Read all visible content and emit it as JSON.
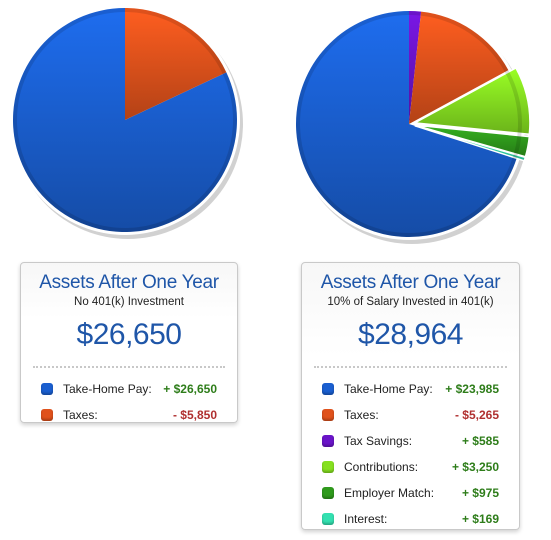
{
  "left_panel": {
    "title": "Assets After One Year",
    "subtitle": "No 401(k) Investment",
    "total": "$26,650",
    "rows": [
      {
        "label": "Take-Home Pay:",
        "value": "+ $26,650",
        "color": "#1a5fd0",
        "sign": "pos",
        "icon": "blue-square-icon"
      },
      {
        "label": "Taxes:",
        "value": "- $5,850",
        "color": "#e0521c",
        "sign": "neg",
        "icon": "orange-square-icon"
      }
    ],
    "pie": [
      {
        "name": "Take-Home Pay",
        "value": 26650,
        "color": "#1a5fd0"
      },
      {
        "name": "Taxes",
        "value": 5850,
        "color": "#e0521c"
      }
    ]
  },
  "right_panel": {
    "title": "Assets After One Year",
    "subtitle": "10% of Salary Invested in 401(k)",
    "total": "$28,964",
    "rows": [
      {
        "label": "Take-Home Pay:",
        "value": "+ $23,985",
        "color": "#1a5fd0",
        "sign": "pos",
        "icon": "blue-square-icon"
      },
      {
        "label": "Taxes:",
        "value": "- $5,265",
        "color": "#e0521c",
        "sign": "neg",
        "icon": "orange-square-icon"
      },
      {
        "label": "Tax Savings:",
        "value": "+ $585",
        "color": "#6a14c8",
        "sign": "pos",
        "icon": "purple-square-icon"
      },
      {
        "label": "Contributions:",
        "value": "+ $3,250",
        "color": "#86e020",
        "sign": "pos",
        "icon": "light-green-square-icon"
      },
      {
        "label": "Employer Match:",
        "value": "+ $975",
        "color": "#2f9a1c",
        "sign": "pos",
        "icon": "dark-green-square-icon"
      },
      {
        "label": "Interest:",
        "value": "+ $169",
        "color": "#33e0b0",
        "sign": "pos",
        "icon": "teal-square-icon"
      }
    ],
    "pie": [
      {
        "name": "Take-Home Pay",
        "value": 23985,
        "color": "#1a5fd0"
      },
      {
        "name": "Tax Savings",
        "value": 585,
        "color": "#6a14c8"
      },
      {
        "name": "Taxes",
        "value": 5265,
        "color": "#e0521c"
      },
      {
        "name": "Contributions",
        "value": 3250,
        "color": "#86e020",
        "exploded": true
      },
      {
        "name": "Employer Match",
        "value": 975,
        "color": "#2f9a1c",
        "exploded": true
      },
      {
        "name": "Interest",
        "value": 169,
        "color": "#33e0b0",
        "exploded": true
      }
    ]
  }
}
